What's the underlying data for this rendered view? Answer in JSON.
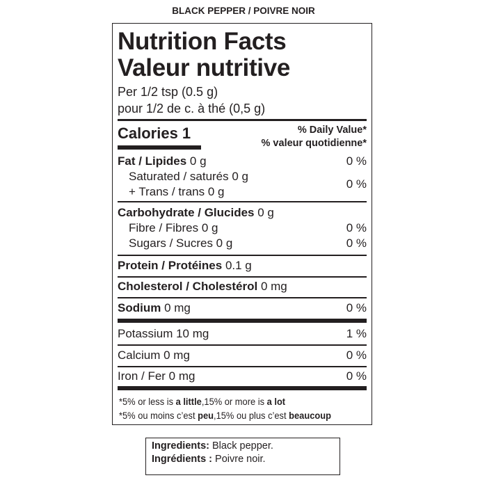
{
  "product_name": "BLACK PEPPER / POIVRE NOIR",
  "label": {
    "title_en": "Nutrition Facts",
    "title_fr": "Valeur nutritive",
    "serving_en": "Per 1/2 tsp (0.5 g)",
    "serving_fr": "pour 1/2 de c. à thé (0,5 g)",
    "calories": "Calories 1",
    "dv_en": "% Daily Value*",
    "dv_fr": "% valeur quotidienne*",
    "nutrients": {
      "fat": {
        "name": "Fat / Lipides",
        "amount": "0 g",
        "dv": "0 %"
      },
      "saturated": {
        "name": "Saturated / saturés 0 g"
      },
      "trans": {
        "name": "+ Trans / trans 0 g",
        "dv": "0 %"
      },
      "carb": {
        "name": "Carbohydrate / Glucides",
        "amount": "0 g"
      },
      "fibre": {
        "name": "Fibre / Fibres 0 g",
        "dv": "0 %"
      },
      "sugars": {
        "name": "Sugars / Sucres 0 g",
        "dv": "0 %"
      },
      "protein": {
        "name": "Protein / Protéines",
        "amount": "0.1 g"
      },
      "cholesterol": {
        "name": "Cholesterol / Cholestérol",
        "amount": "0 mg"
      },
      "sodium": {
        "name": "Sodium",
        "amount": "0 mg",
        "dv": "0 %"
      },
      "potassium": {
        "name": "Potassium 10 mg",
        "dv": "1 %"
      },
      "calcium": {
        "name": "Calcium 0 mg",
        "dv": "0 %"
      },
      "iron": {
        "name": "Iron / Fer 0 mg",
        "dv": "0 %"
      }
    },
    "footnote_en": {
      "a": "*5% or less is ",
      "b": "a little",
      "c": ",15% or more is ",
      "d": "a lot"
    },
    "footnote_fr": {
      "a": "*5% ou moins c’est ",
      "b": "peu",
      "c": ",15% ou plus c’est ",
      "d": "beaucoup"
    }
  },
  "ingredients": {
    "label_en": "Ingredients:",
    "value_en": " Black pepper.",
    "label_fr": "Ingrédients :",
    "value_fr": " Poivre noir."
  }
}
